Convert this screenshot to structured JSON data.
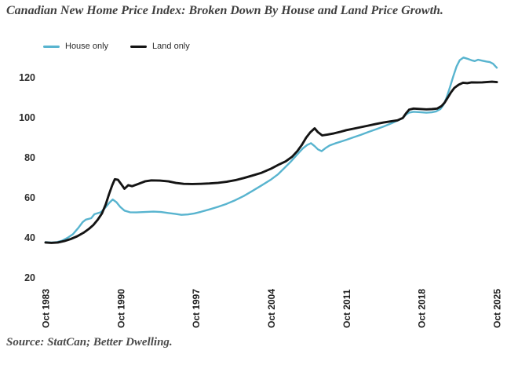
{
  "page": {
    "title": "Canadian New Home Price Index: Broken Down By House and Land Price Growth.",
    "source": "Source: StatCan; Better Dwelling."
  },
  "legend": {
    "items": [
      {
        "label": "House only",
        "color": "#58b4cf"
      },
      {
        "label": "Land only",
        "color": "#141414"
      }
    ]
  },
  "chart_data": {
    "type": "line",
    "title": "Canadian New Home Price Index: Broken Down By House and Land Price Growth.",
    "xlabel": "",
    "ylabel": "",
    "xlim": [
      1983.75,
      2025.75
    ],
    "ylim": [
      20,
      132
    ],
    "grid": false,
    "legend_position": "top-left",
    "x_axis": {
      "tick_labels": [
        "Oct 1983",
        "Oct 1990",
        "Oct 1997",
        "Oct 2004",
        "Oct 2011",
        "Oct 2018",
        "Oct 2025"
      ],
      "tick_values": [
        1983.75,
        1990.75,
        1997.75,
        2004.75,
        2011.75,
        2018.75,
        2025.75
      ]
    },
    "y_axis": {
      "ticks": [
        20,
        40,
        60,
        80,
        100,
        120
      ]
    },
    "series": [
      {
        "name": "House only",
        "color": "#58b4cf",
        "points": [
          [
            1983.75,
            37.7
          ],
          [
            1984.3,
            37.5
          ],
          [
            1984.8,
            37.7
          ],
          [
            1985.3,
            38.4
          ],
          [
            1985.8,
            39.8
          ],
          [
            1986.3,
            41.6
          ],
          [
            1986.8,
            44.8
          ],
          [
            1987.2,
            47.6
          ],
          [
            1987.5,
            48.9
          ],
          [
            1988.0,
            49.6
          ],
          [
            1988.3,
            51.6
          ],
          [
            1988.9,
            52.6
          ],
          [
            1989.3,
            54.8
          ],
          [
            1989.7,
            57.4
          ],
          [
            1990.0,
            59.0
          ],
          [
            1990.35,
            57.6
          ],
          [
            1990.7,
            55.3
          ],
          [
            1991.1,
            53.4
          ],
          [
            1991.6,
            52.6
          ],
          [
            1992.2,
            52.5
          ],
          [
            1993.0,
            52.7
          ],
          [
            1993.8,
            52.9
          ],
          [
            1994.5,
            52.7
          ],
          [
            1995.2,
            52.2
          ],
          [
            1995.8,
            51.8
          ],
          [
            1996.4,
            51.3
          ],
          [
            1997.0,
            51.5
          ],
          [
            1997.6,
            52.0
          ],
          [
            1998.2,
            52.8
          ],
          [
            1999.0,
            54.0
          ],
          [
            1999.8,
            55.3
          ],
          [
            2000.6,
            56.8
          ],
          [
            2001.4,
            58.6
          ],
          [
            2002.2,
            60.7
          ],
          [
            2003.0,
            63.2
          ],
          [
            2003.8,
            65.8
          ],
          [
            2004.75,
            69.0
          ],
          [
            2005.4,
            71.6
          ],
          [
            2006.0,
            74.8
          ],
          [
            2006.6,
            78.0
          ],
          [
            2007.2,
            81.6
          ],
          [
            2007.7,
            84.5
          ],
          [
            2008.1,
            86.2
          ],
          [
            2008.45,
            87.1
          ],
          [
            2008.8,
            85.6
          ],
          [
            2009.1,
            84.0
          ],
          [
            2009.45,
            83.1
          ],
          [
            2009.8,
            84.6
          ],
          [
            2010.2,
            86.0
          ],
          [
            2010.7,
            87.0
          ],
          [
            2011.3,
            88.0
          ],
          [
            2011.75,
            88.8
          ],
          [
            2012.4,
            90.0
          ],
          [
            2013.1,
            91.3
          ],
          [
            2013.8,
            92.7
          ],
          [
            2014.5,
            94.0
          ],
          [
            2015.2,
            95.4
          ],
          [
            2015.9,
            96.9
          ],
          [
            2016.5,
            98.4
          ],
          [
            2017.0,
            99.6
          ],
          [
            2017.3,
            101.4
          ],
          [
            2017.6,
            102.4
          ],
          [
            2018.0,
            102.8
          ],
          [
            2018.6,
            102.6
          ],
          [
            2019.2,
            102.3
          ],
          [
            2019.7,
            102.5
          ],
          [
            2020.1,
            103.0
          ],
          [
            2020.5,
            104.1
          ],
          [
            2020.8,
            106.3
          ],
          [
            2021.1,
            110.2
          ],
          [
            2021.4,
            115.2
          ],
          [
            2021.7,
            120.6
          ],
          [
            2022.0,
            125.4
          ],
          [
            2022.3,
            128.6
          ],
          [
            2022.65,
            129.9
          ],
          [
            2023.0,
            129.3
          ],
          [
            2023.4,
            128.5
          ],
          [
            2023.7,
            128.1
          ],
          [
            2024.0,
            128.8
          ],
          [
            2024.4,
            128.3
          ],
          [
            2024.8,
            127.9
          ],
          [
            2025.1,
            127.6
          ],
          [
            2025.4,
            126.8
          ],
          [
            2025.75,
            124.8
          ]
        ]
      },
      {
        "name": "Land only",
        "color": "#141414",
        "points": [
          [
            1983.75,
            37.5
          ],
          [
            1984.3,
            37.3
          ],
          [
            1984.9,
            37.5
          ],
          [
            1985.5,
            38.2
          ],
          [
            1986.1,
            39.2
          ],
          [
            1986.7,
            40.6
          ],
          [
            1987.3,
            42.4
          ],
          [
            1987.8,
            44.3
          ],
          [
            1988.2,
            46.2
          ],
          [
            1988.6,
            48.8
          ],
          [
            1989.0,
            52.0
          ],
          [
            1989.35,
            56.5
          ],
          [
            1989.65,
            61.5
          ],
          [
            1989.95,
            66.0
          ],
          [
            1990.2,
            69.1
          ],
          [
            1990.5,
            68.8
          ],
          [
            1990.8,
            66.6
          ],
          [
            1991.1,
            64.3
          ],
          [
            1991.45,
            66.1
          ],
          [
            1991.8,
            65.6
          ],
          [
            1992.3,
            66.6
          ],
          [
            1993.0,
            68.0
          ],
          [
            1993.6,
            68.5
          ],
          [
            1994.4,
            68.4
          ],
          [
            1995.2,
            68.0
          ],
          [
            1995.9,
            67.2
          ],
          [
            1996.6,
            66.8
          ],
          [
            1997.4,
            66.7
          ],
          [
            1998.2,
            66.8
          ],
          [
            1999.0,
            67.0
          ],
          [
            1999.8,
            67.3
          ],
          [
            2000.6,
            67.8
          ],
          [
            2001.4,
            68.6
          ],
          [
            2002.2,
            69.7
          ],
          [
            2003.0,
            70.9
          ],
          [
            2003.8,
            72.2
          ],
          [
            2004.75,
            74.4
          ],
          [
            2005.5,
            76.5
          ],
          [
            2006.1,
            78.0
          ],
          [
            2006.7,
            80.3
          ],
          [
            2007.2,
            83.2
          ],
          [
            2007.6,
            86.2
          ],
          [
            2008.0,
            89.8
          ],
          [
            2008.4,
            92.6
          ],
          [
            2008.8,
            94.5
          ],
          [
            2009.1,
            92.6
          ],
          [
            2009.5,
            91.0
          ],
          [
            2010.0,
            91.4
          ],
          [
            2010.6,
            92.0
          ],
          [
            2011.2,
            92.8
          ],
          [
            2011.75,
            93.6
          ],
          [
            2012.4,
            94.3
          ],
          [
            2013.1,
            95.1
          ],
          [
            2013.8,
            95.9
          ],
          [
            2014.5,
            96.7
          ],
          [
            2015.2,
            97.4
          ],
          [
            2015.9,
            98.0
          ],
          [
            2016.5,
            98.5
          ],
          [
            2017.0,
            99.7
          ],
          [
            2017.3,
            102.0
          ],
          [
            2017.6,
            103.9
          ],
          [
            2018.0,
            104.4
          ],
          [
            2018.6,
            104.2
          ],
          [
            2019.2,
            104.0
          ],
          [
            2019.7,
            104.1
          ],
          [
            2020.2,
            104.4
          ],
          [
            2020.6,
            105.6
          ],
          [
            2020.9,
            107.4
          ],
          [
            2021.2,
            110.0
          ],
          [
            2021.5,
            112.6
          ],
          [
            2021.8,
            114.7
          ],
          [
            2022.2,
            116.3
          ],
          [
            2022.6,
            117.3
          ],
          [
            2023.0,
            117.1
          ],
          [
            2023.4,
            117.5
          ],
          [
            2023.9,
            117.4
          ],
          [
            2024.4,
            117.5
          ],
          [
            2024.9,
            117.7
          ],
          [
            2025.3,
            117.8
          ],
          [
            2025.75,
            117.6
          ]
        ]
      }
    ]
  }
}
